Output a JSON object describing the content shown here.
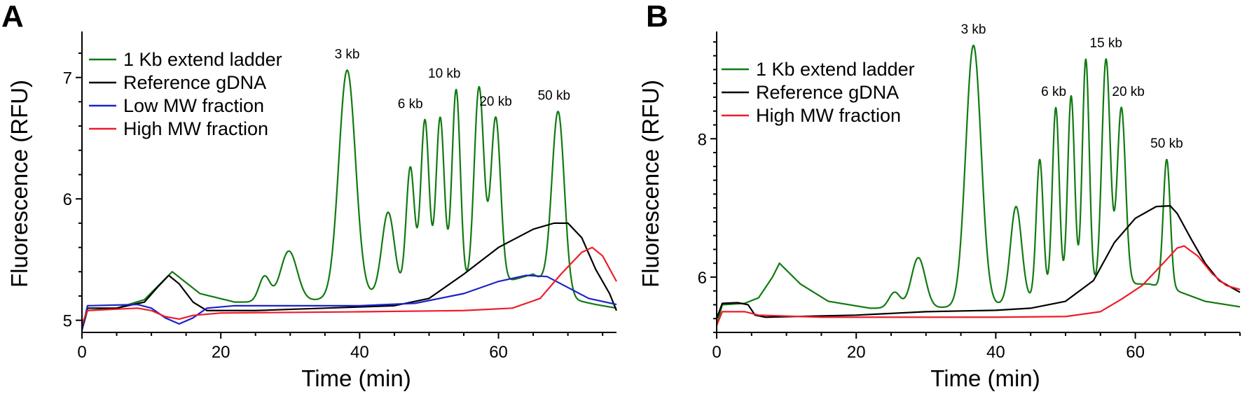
{
  "chart_data": [
    {
      "panel": "A",
      "type": "line",
      "xlabel": "Time (min)",
      "ylabel": "Fluorescence (RFU)",
      "xlim": [
        0,
        77
      ],
      "ylim": [
        4.9,
        7.35
      ],
      "xticks": [
        0,
        20,
        40,
        60
      ],
      "yticks": [
        5,
        6,
        7
      ],
      "legend_position": "top-left",
      "series": [
        {
          "name": "1 Kb extend ladder",
          "color": "#117a11",
          "baseline": [
            [
              0,
              4.92
            ],
            [
              0.8,
              5.08
            ],
            [
              5,
              5.1
            ],
            [
              9,
              5.17
            ],
            [
              13,
              5.4
            ],
            [
              17,
              5.22
            ],
            [
              22,
              5.15
            ],
            [
              30,
              5.15
            ],
            [
              40,
              5.2
            ],
            [
              48,
              5.25
            ],
            [
              60,
              5.3
            ],
            [
              65,
              5.38
            ],
            [
              70,
              5.18
            ],
            [
              74,
              5.13
            ],
            [
              77,
              5.1
            ]
          ],
          "peaks": [
            {
              "x": 13.0,
              "y": 5.4,
              "w": 2.2
            },
            {
              "x": 26.3,
              "y": 5.36,
              "w": 0.8
            },
            {
              "x": 29.8,
              "y": 5.57,
              "w": 1.2
            },
            {
              "x": 38.2,
              "y": 7.06,
              "w": 1.2
            },
            {
              "x": 44.1,
              "y": 5.89,
              "w": 0.9
            },
            {
              "x": 47.3,
              "y": 6.26,
              "w": 0.6
            },
            {
              "x": 49.4,
              "y": 6.65,
              "w": 0.6
            },
            {
              "x": 51.6,
              "y": 6.67,
              "w": 0.6
            },
            {
              "x": 53.9,
              "y": 6.9,
              "w": 0.6
            },
            {
              "x": 57.2,
              "y": 6.92,
              "w": 0.7
            },
            {
              "x": 59.6,
              "y": 6.67,
              "w": 0.7
            },
            {
              "x": 68.6,
              "y": 6.72,
              "w": 0.9
            }
          ]
        },
        {
          "name": "Reference gDNA",
          "color": "#000000",
          "points": [
            [
              0,
              4.92
            ],
            [
              0.8,
              5.1
            ],
            [
              5,
              5.1
            ],
            [
              9,
              5.15
            ],
            [
              11,
              5.28
            ],
            [
              12.5,
              5.37
            ],
            [
              14,
              5.3
            ],
            [
              16,
              5.15
            ],
            [
              18,
              5.08
            ],
            [
              25,
              5.08
            ],
            [
              35,
              5.1
            ],
            [
              45,
              5.12
            ],
            [
              50,
              5.18
            ],
            [
              55,
              5.38
            ],
            [
              60,
              5.6
            ],
            [
              65,
              5.75
            ],
            [
              68,
              5.8
            ],
            [
              70,
              5.8
            ],
            [
              72,
              5.68
            ],
            [
              74,
              5.42
            ],
            [
              76,
              5.22
            ],
            [
              77,
              5.08
            ]
          ]
        },
        {
          "name": "Low MW fraction",
          "color": "#1c22c8",
          "points": [
            [
              0,
              4.92
            ],
            [
              0.8,
              5.12
            ],
            [
              8,
              5.13
            ],
            [
              10,
              5.1
            ],
            [
              12,
              5.02
            ],
            [
              14,
              4.97
            ],
            [
              16,
              5.02
            ],
            [
              18,
              5.1
            ],
            [
              22,
              5.12
            ],
            [
              40,
              5.12
            ],
            [
              48,
              5.14
            ],
            [
              55,
              5.22
            ],
            [
              60,
              5.32
            ],
            [
              64,
              5.37
            ],
            [
              67,
              5.36
            ],
            [
              70,
              5.27
            ],
            [
              73,
              5.18
            ],
            [
              77,
              5.13
            ]
          ]
        },
        {
          "name": "High MW fraction",
          "color": "#ee1c2a",
          "points": [
            [
              0,
              4.97
            ],
            [
              0.8,
              5.08
            ],
            [
              8,
              5.1
            ],
            [
              10,
              5.08
            ],
            [
              12,
              5.03
            ],
            [
              14,
              5.01
            ],
            [
              16,
              5.04
            ],
            [
              20,
              5.06
            ],
            [
              40,
              5.07
            ],
            [
              55,
              5.08
            ],
            [
              62,
              5.1
            ],
            [
              66,
              5.18
            ],
            [
              69,
              5.38
            ],
            [
              72,
              5.56
            ],
            [
              73.5,
              5.6
            ],
            [
              75,
              5.53
            ],
            [
              77,
              5.32
            ]
          ]
        }
      ],
      "annotations": [
        {
          "text": "3 kb",
          "x": 38.2,
          "y": 7.06
        },
        {
          "text": "6 kb",
          "x": 47.3,
          "y": 6.65
        },
        {
          "text": "10 kb",
          "x": 52.2,
          "y": 6.9
        },
        {
          "text": "20 kb",
          "x": 59.6,
          "y": 6.67
        },
        {
          "text": "50 kb",
          "x": 68.0,
          "y": 6.72
        }
      ]
    },
    {
      "panel": "B",
      "type": "line",
      "xlabel": "Time (min)",
      "ylabel": "Fluorescence (RFU)",
      "xlim": [
        0,
        75
      ],
      "ylim": [
        5.2,
        9.5
      ],
      "xticks": [
        0,
        20,
        40,
        60
      ],
      "yticks": [
        6,
        8
      ],
      "legend_position": "top-left",
      "series": [
        {
          "name": "1 Kb extend ladder",
          "color": "#117a11",
          "baseline": [
            [
              0,
              5.3
            ],
            [
              0.8,
              5.6
            ],
            [
              4,
              5.62
            ],
            [
              6,
              5.7
            ],
            [
              8,
              6.0
            ],
            [
              9,
              6.2
            ],
            [
              12,
              5.9
            ],
            [
              16,
              5.65
            ],
            [
              22,
              5.55
            ],
            [
              30,
              5.55
            ],
            [
              40,
              5.6
            ],
            [
              50,
              5.75
            ],
            [
              58,
              5.9
            ],
            [
              62,
              5.9
            ],
            [
              66,
              5.8
            ],
            [
              70,
              5.65
            ],
            [
              75,
              5.57
            ]
          ],
          "peaks": [
            {
              "x": 25.5,
              "y": 5.78,
              "w": 0.8
            },
            {
              "x": 28.9,
              "y": 6.28,
              "w": 1.0
            },
            {
              "x": 36.8,
              "y": 9.35,
              "w": 1.1
            },
            {
              "x": 42.9,
              "y": 7.02,
              "w": 0.8
            },
            {
              "x": 46.3,
              "y": 7.7,
              "w": 0.5
            },
            {
              "x": 48.6,
              "y": 8.45,
              "w": 0.5
            },
            {
              "x": 50.8,
              "y": 8.62,
              "w": 0.5
            },
            {
              "x": 52.9,
              "y": 9.15,
              "w": 0.5
            },
            {
              "x": 55.8,
              "y": 9.15,
              "w": 0.6
            },
            {
              "x": 58.0,
              "y": 8.45,
              "w": 0.6
            },
            {
              "x": 64.5,
              "y": 7.7,
              "w": 0.5
            }
          ]
        },
        {
          "name": "Reference gDNA",
          "color": "#000000",
          "points": [
            [
              0,
              5.4
            ],
            [
              0.8,
              5.62
            ],
            [
              3,
              5.63
            ],
            [
              4.5,
              5.6
            ],
            [
              5.5,
              5.45
            ],
            [
              7,
              5.42
            ],
            [
              20,
              5.45
            ],
            [
              30,
              5.5
            ],
            [
              40,
              5.52
            ],
            [
              45,
              5.55
            ],
            [
              50,
              5.65
            ],
            [
              54,
              5.95
            ],
            [
              57,
              6.5
            ],
            [
              60,
              6.85
            ],
            [
              63,
              7.02
            ],
            [
              65,
              7.03
            ],
            [
              66,
              6.92
            ],
            [
              68,
              6.55
            ],
            [
              70,
              6.2
            ],
            [
              72,
              5.95
            ],
            [
              75,
              5.78
            ]
          ]
        },
        {
          "name": "High MW fraction",
          "color": "#ee1c2a",
          "points": [
            [
              0,
              5.3
            ],
            [
              0.8,
              5.5
            ],
            [
              4,
              5.5
            ],
            [
              6,
              5.45
            ],
            [
              15,
              5.42
            ],
            [
              30,
              5.42
            ],
            [
              40,
              5.42
            ],
            [
              50,
              5.43
            ],
            [
              55,
              5.5
            ],
            [
              58,
              5.68
            ],
            [
              61,
              5.88
            ],
            [
              64,
              6.2
            ],
            [
              66,
              6.42
            ],
            [
              67,
              6.45
            ],
            [
              69,
              6.3
            ],
            [
              71,
              6.05
            ],
            [
              73,
              5.88
            ],
            [
              75,
              5.82
            ]
          ]
        }
      ],
      "annotations": [
        {
          "text": "3 kb",
          "x": 36.8,
          "y": 9.35
        },
        {
          "text": "6 kb",
          "x": 48.3,
          "y": 8.45
        },
        {
          "text": "15 kb",
          "x": 55.8,
          "y": 9.15
        },
        {
          "text": "20 kb",
          "x": 59.0,
          "y": 8.45
        },
        {
          "text": "50 kb",
          "x": 64.5,
          "y": 7.7
        }
      ]
    }
  ]
}
